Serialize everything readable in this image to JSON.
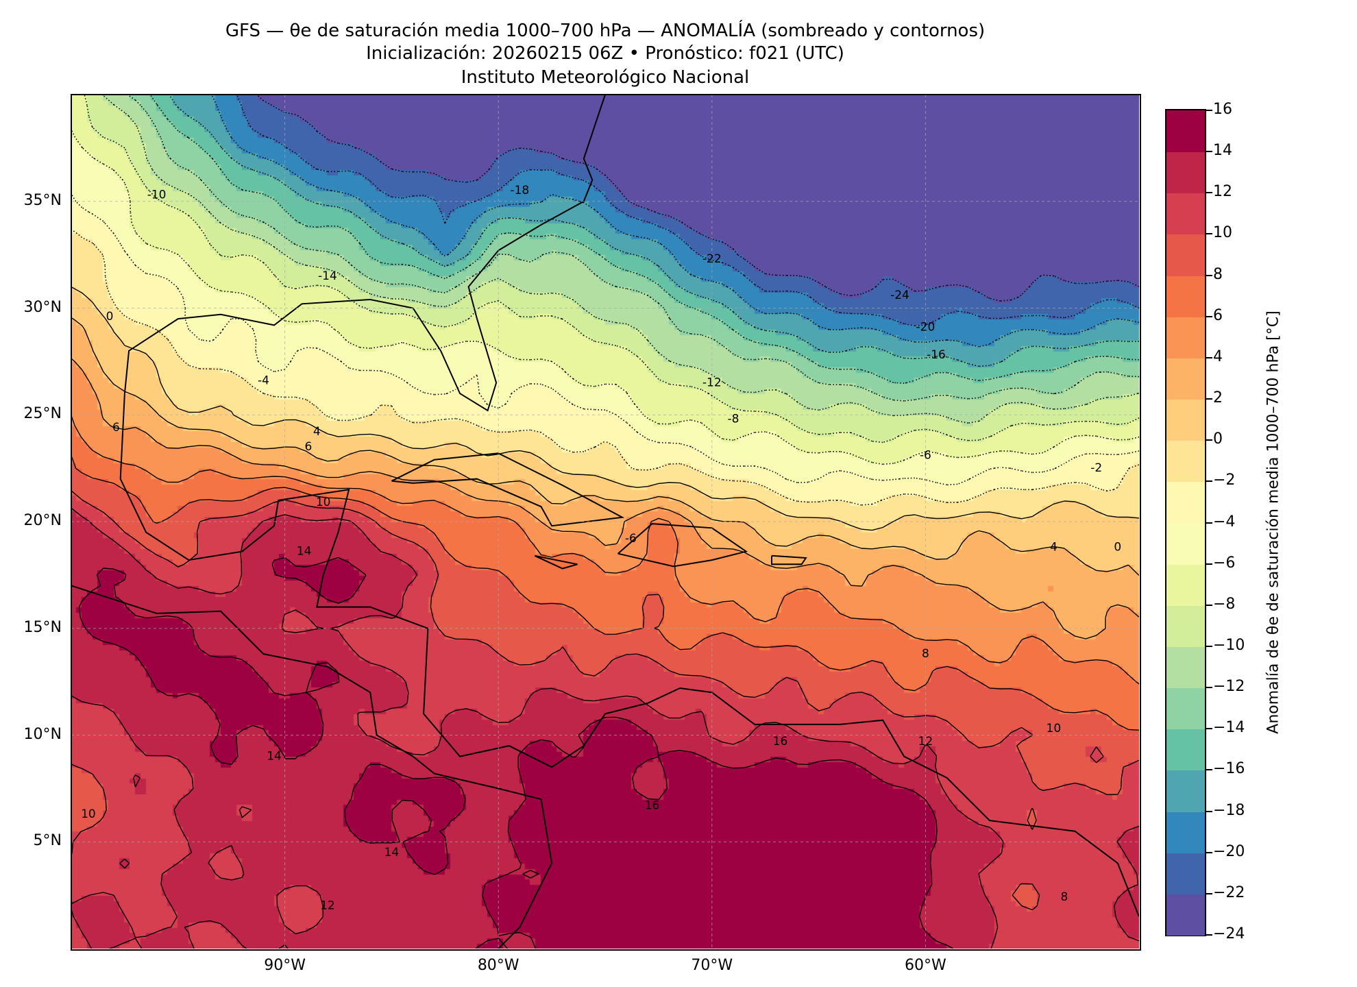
{
  "title": {
    "line1": "GFS — θe de saturación media 1000–700 hPa — ANOMALÍA (sombreado y contornos)",
    "line2": "Inicialización: 20260215 06Z   •   Pronóstico: f021 (UTC)",
    "line3": "Instituto Meteorológico Nacional"
  },
  "axes": {
    "lon_range": [
      -100,
      -50
    ],
    "lat_range": [
      0,
      40
    ],
    "x_ticks": [
      {
        "value": -90,
        "label": "90°W"
      },
      {
        "value": -80,
        "label": "80°W"
      },
      {
        "value": -70,
        "label": "70°W"
      },
      {
        "value": -60,
        "label": "60°W"
      }
    ],
    "y_ticks": [
      {
        "value": 35,
        "label": "35°N"
      },
      {
        "value": 30,
        "label": "30°N"
      },
      {
        "value": 25,
        "label": "25°N"
      },
      {
        "value": 20,
        "label": "20°N"
      },
      {
        "value": 15,
        "label": "15°N"
      },
      {
        "value": 10,
        "label": "10°N"
      },
      {
        "value": 5,
        "label": "5°N"
      }
    ]
  },
  "colorbar": {
    "label": "Anomalía de θe de saturación media 1000–700 hPa [°C]",
    "min": -24,
    "max": 16,
    "step": 2,
    "tick_labels": [
      "16",
      "14",
      "12",
      "10",
      "8",
      "6",
      "4",
      "2",
      "0",
      "−2",
      "−4",
      "−6",
      "−8",
      "−10",
      "−12",
      "−14",
      "−16",
      "−18",
      "−20",
      "−22",
      "−24"
    ],
    "colors": [
      "#5e4fa2",
      "#4065ad",
      "#3288bd",
      "#4fa6b0",
      "#66c2a5",
      "#8fd3a4",
      "#b3e0a2",
      "#d3ee9b",
      "#e9f69d",
      "#f8fcb4",
      "#fff8b3",
      "#fee596",
      "#fece7c",
      "#fdb365",
      "#f99455",
      "#f57446",
      "#e6594a",
      "#d63f4f",
      "#be2549",
      "#9e0142"
    ]
  },
  "chart_data": {
    "type": "heatmap",
    "variable": "θe saturation anomaly (°C)",
    "grid_lons": [
      -100,
      -97.5,
      -95,
      -92.5,
      -90,
      -87.5,
      -85,
      -82.5,
      -80,
      -77.5,
      -75,
      -72.5,
      -70,
      -67.5,
      -65,
      -62.5,
      -60,
      -57.5,
      -55,
      -52.5,
      -50
    ],
    "grid_lats": [
      40,
      37.5,
      35,
      32.5,
      30,
      27.5,
      25,
      22.5,
      20,
      17.5,
      15,
      12.5,
      10,
      7.5,
      5,
      2.5,
      0
    ],
    "values": [
      [
        -7,
        -12,
        -16,
        -20,
        -24,
        -24,
        -24,
        -24,
        -24,
        -24,
        -24,
        -24,
        -24,
        -24,
        -24,
        -24,
        -24,
        -24,
        -24,
        -24,
        -24
      ],
      [
        -5,
        -8,
        -13,
        -17,
        -20,
        -22,
        -24,
        -24,
        -23,
        -22,
        -24,
        -24,
        -24,
        -24,
        -24,
        -24,
        -24,
        -24,
        -24,
        -24,
        -24
      ],
      [
        -3,
        -6,
        -9,
        -12,
        -15,
        -17,
        -19,
        -21,
        -19,
        -17,
        -20,
        -24,
        -24,
        -24,
        -24,
        -24,
        -24,
        -24,
        -24,
        -24,
        -24
      ],
      [
        -1,
        -4,
        -6,
        -8,
        -10,
        -12,
        -15,
        -18,
        -12,
        -12,
        -14,
        -17,
        -21,
        -24,
        -24,
        -24,
        -24,
        -24,
        -24,
        -24,
        -24
      ],
      [
        1,
        -2,
        -4,
        -5,
        -6,
        -7,
        -9,
        -9,
        -8,
        -9,
        -10,
        -12,
        -15,
        -18,
        -20,
        -21,
        -21,
        -21,
        -21,
        -20,
        -20
      ],
      [
        4,
        1,
        -2,
        -3,
        -4,
        -4,
        -5,
        -5,
        -5,
        -6,
        -7,
        -9,
        -11,
        -12,
        -14,
        -15,
        -16,
        -16,
        -15,
        -14,
        -13
      ],
      [
        6,
        3,
        1,
        0,
        -1,
        -2,
        -2,
        -3,
        -3,
        -3,
        -4,
        -6,
        -7,
        -8,
        -9,
        -10,
        -10,
        -10,
        -9,
        -9,
        -8
      ],
      [
        8,
        6,
        6,
        5,
        4,
        3,
        3,
        2,
        1,
        0,
        -1,
        -2,
        -3,
        -4,
        -5,
        -5,
        -5,
        -5,
        -4,
        -3,
        -2
      ],
      [
        14,
        9,
        8,
        11,
        13,
        12,
        9,
        7,
        6,
        4,
        3,
        6,
        3,
        1,
        0,
        0,
        0,
        1,
        1,
        1,
        0
      ],
      [
        14,
        14,
        10,
        12,
        14,
        15,
        14,
        9,
        8,
        7,
        6,
        7,
        5,
        5,
        5,
        4,
        4,
        3,
        3,
        3,
        2
      ],
      [
        13,
        15,
        15,
        13,
        12,
        12,
        11,
        10,
        9,
        9,
        8,
        8,
        7,
        7,
        7,
        6,
        6,
        5,
        5,
        4,
        4
      ],
      [
        12,
        13,
        15,
        15,
        14,
        14,
        12,
        11,
        11,
        11,
        11,
        11,
        10,
        10,
        9,
        9,
        8,
        8,
        7,
        7,
        6
      ],
      [
        10,
        12,
        13,
        14,
        15,
        13,
        11,
        12,
        13,
        14,
        15,
        14,
        12,
        12,
        12,
        11,
        11,
        10,
        10,
        9,
        9
      ],
      [
        9,
        11,
        12,
        13,
        13,
        14,
        15,
        14,
        13,
        15,
        15,
        14,
        16,
        16,
        16,
        15,
        13,
        11,
        10,
        10,
        11
      ],
      [
        10,
        11,
        12,
        12,
        13,
        13,
        14,
        14,
        13,
        15,
        15,
        16,
        16,
        16,
        16,
        16,
        15,
        12,
        11,
        12,
        12
      ],
      [
        12,
        12,
        12,
        13,
        12,
        12,
        13,
        13,
        14,
        15,
        16,
        16,
        16,
        16,
        16,
        16,
        14,
        12,
        10,
        11,
        12
      ],
      [
        12,
        12,
        12,
        12,
        12,
        13,
        13,
        13,
        14,
        15,
        16,
        16,
        16,
        16,
        16,
        16,
        15,
        13,
        11,
        11,
        12
      ]
    ],
    "contour_interval": 2,
    "contour_labels": [
      {
        "text": "-10",
        "lon": -96,
        "lat": 35.3
      },
      {
        "text": "-14",
        "lon": -88,
        "lat": 31.5
      },
      {
        "text": "-18",
        "lon": -79,
        "lat": 35.5
      },
      {
        "text": "-22",
        "lon": -70,
        "lat": 32.3
      },
      {
        "text": "-24",
        "lon": -61.2,
        "lat": 30.6
      },
      {
        "text": "-20",
        "lon": -60,
        "lat": 29.1
      },
      {
        "text": "-16",
        "lon": -59.5,
        "lat": 27.8
      },
      {
        "text": "-12",
        "lon": -70,
        "lat": 26.5
      },
      {
        "text": "-8",
        "lon": -69,
        "lat": 24.8
      },
      {
        "text": "-6",
        "lon": -60,
        "lat": 23.1
      },
      {
        "text": "-2",
        "lon": -52,
        "lat": 22.5
      },
      {
        "text": "-4",
        "lon": -91,
        "lat": 26.6
      },
      {
        "text": "-6",
        "lon": -73.8,
        "lat": 19.2
      },
      {
        "text": "0",
        "lon": -98.2,
        "lat": 29.6
      },
      {
        "text": "4",
        "lon": -88.5,
        "lat": 24.2
      },
      {
        "text": "6",
        "lon": -88.9,
        "lat": 23.5
      },
      {
        "text": "6",
        "lon": -97.9,
        "lat": 24.4
      },
      {
        "text": "10",
        "lon": -88.2,
        "lat": 20.9
      },
      {
        "text": "14",
        "lon": -89.1,
        "lat": 18.6
      },
      {
        "text": "4",
        "lon": -54,
        "lat": 18.8
      },
      {
        "text": "0",
        "lon": -51,
        "lat": 18.8
      },
      {
        "text": "8",
        "lon": -60,
        "lat": 13.8
      },
      {
        "text": "10",
        "lon": -54,
        "lat": 10.3
      },
      {
        "text": "12",
        "lon": -60,
        "lat": 9.7
      },
      {
        "text": "16",
        "lon": -66.8,
        "lat": 9.7
      },
      {
        "text": "14",
        "lon": -90.5,
        "lat": 9
      },
      {
        "text": "10",
        "lon": -99.2,
        "lat": 6.3
      },
      {
        "text": "12",
        "lon": -88,
        "lat": 2
      },
      {
        "text": "14",
        "lon": -85,
        "lat": 4.5
      },
      {
        "text": "16",
        "lon": -72.8,
        "lat": 6.7
      },
      {
        "text": "8",
        "lon": -53.5,
        "lat": 2.4
      }
    ]
  }
}
